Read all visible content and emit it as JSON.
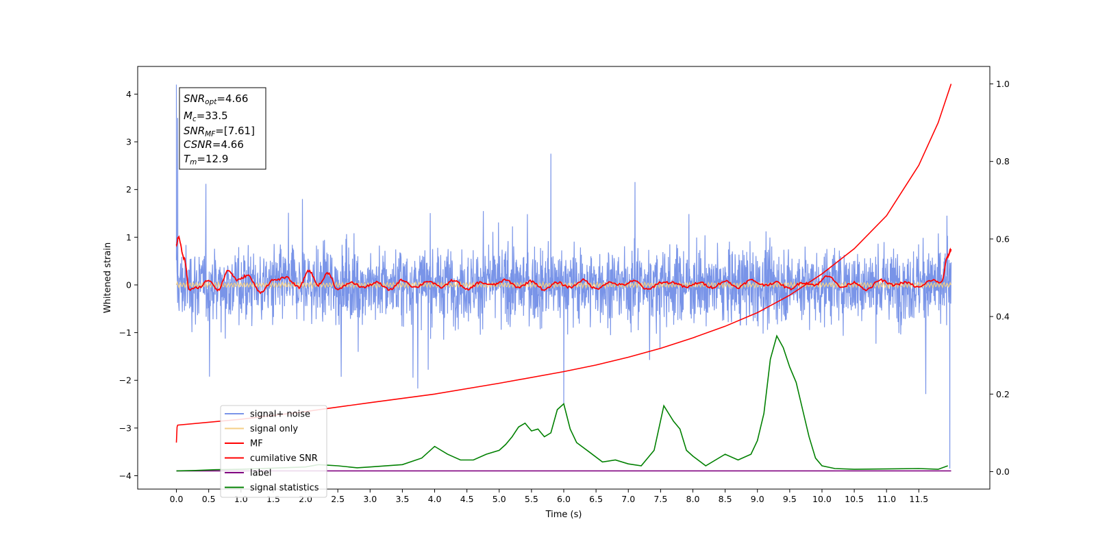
{
  "chart_data": {
    "type": "line",
    "xlabel": "Time (s)",
    "ylabel": "Whitened strain",
    "xlim": [
      -0.6,
      12.6
    ],
    "ylim": [
      -4.28,
      4.58
    ],
    "y2lim": [
      -0.045,
      1.045
    ],
    "x_ticks": [
      "0.0",
      "0.5",
      "1.0",
      "1.5",
      "2.0",
      "2.5",
      "3.0",
      "3.5",
      "4.0",
      "4.5",
      "5.0",
      "5.5",
      "6.0",
      "6.5",
      "7.0",
      "7.5",
      "8.0",
      "8.5",
      "9.0",
      "9.5",
      "10.0",
      "10.5",
      "11.0",
      "11.5"
    ],
    "y_ticks": [
      "4",
      "3",
      "2",
      "1",
      "0",
      "−1",
      "−2",
      "−3",
      "−4"
    ],
    "y2_ticks": [
      "1.0",
      "0.8",
      "0.6",
      "0.4",
      "0.2",
      "0.0"
    ],
    "legend_position": "lower-left",
    "info_box": {
      "snr_opt": {
        "base": "SNR",
        "sub": "opt",
        "value": "=4.66"
      },
      "mc": {
        "base": "M",
        "sub": "c",
        "value": "=33.5"
      },
      "snr_mf": {
        "base": "SNR",
        "sub": "MF",
        "value": "=[7.61]"
      },
      "csnr": {
        "base": "CSNR",
        "value": "=4.66"
      },
      "tm": {
        "base": "T",
        "sub": "m",
        "value": "=12.9"
      }
    },
    "series": [
      {
        "name": "signal+ noise",
        "color": "#7994e8",
        "axis": "left",
        "style": "noise",
        "t_start": 0.0,
        "t_end": 12.0,
        "amplitude": 0.55,
        "spike_times": [
          0.0,
          0.02,
          5.8,
          6.0,
          11.98
        ],
        "spike_values": [
          4.2,
          3.5,
          2.75,
          -2.5,
          -3.85
        ]
      },
      {
        "name": "signal only",
        "color": "#f5cf85",
        "axis": "left",
        "style": "band",
        "t_start": 0.0,
        "t_end": 12.0,
        "amplitude": 0.06
      },
      {
        "name": "MF",
        "color": "#ff0000",
        "axis": "left",
        "style": "mf",
        "x": [
          0.0,
          0.03,
          0.12,
          0.2,
          0.35,
          0.5,
          0.65,
          0.8,
          0.95,
          1.1,
          1.3,
          1.5,
          1.7,
          1.9,
          2.05,
          2.2,
          2.35,
          2.5,
          2.7,
          2.9,
          3.1,
          3.3,
          3.5,
          3.7,
          3.9,
          4.1,
          4.3,
          4.5,
          4.7,
          4.9,
          5.1,
          5.3,
          5.5,
          5.7,
          5.9,
          6.1,
          6.3,
          6.5,
          6.7,
          6.9,
          7.1,
          7.3,
          7.5,
          7.7,
          7.9,
          8.1,
          8.3,
          8.5,
          8.7,
          8.9,
          9.1,
          9.3,
          9.5,
          9.7,
          9.9,
          10.1,
          10.3,
          10.5,
          10.7,
          10.9,
          11.1,
          11.3,
          11.5,
          11.7,
          11.85,
          11.95,
          12.0
        ],
        "y": [
          0.85,
          1.0,
          0.55,
          -0.1,
          -0.05,
          0.1,
          -0.1,
          0.3,
          0.1,
          0.2,
          -0.15,
          0.1,
          0.15,
          -0.05,
          0.3,
          0.0,
          0.25,
          -0.1,
          0.05,
          -0.05,
          0.05,
          -0.1,
          0.1,
          -0.05,
          0.08,
          -0.05,
          0.1,
          -0.1,
          0.05,
          0.0,
          0.1,
          -0.05,
          0.08,
          -0.1,
          0.05,
          -0.05,
          0.1,
          -0.08,
          0.05,
          0.0,
          0.08,
          -0.1,
          0.05,
          0.05,
          -0.05,
          0.05,
          -0.05,
          0.08,
          -0.05,
          0.1,
          0.0,
          0.05,
          -0.08,
          0.05,
          0.0,
          0.2,
          -0.05,
          0.05,
          -0.1,
          0.1,
          0.0,
          0.05,
          -0.05,
          0.1,
          0.05,
          0.6,
          0.75
        ]
      },
      {
        "name": "cumilative SNR",
        "color": "#ff0000",
        "axis": "right",
        "style": "line",
        "x": [
          0.0,
          0.01,
          0.02,
          1,
          2,
          3,
          4,
          5,
          6,
          6.5,
          7,
          7.5,
          8,
          8.5,
          9,
          9.5,
          10,
          10.5,
          11,
          11.5,
          11.8,
          12.0
        ],
        "y": [
          0.075,
          0.115,
          0.12,
          0.135,
          0.155,
          0.178,
          0.2,
          0.228,
          0.258,
          0.275,
          0.295,
          0.318,
          0.345,
          0.375,
          0.41,
          0.455,
          0.51,
          0.575,
          0.66,
          0.79,
          0.9,
          1.0
        ]
      },
      {
        "name": "label",
        "color": "#800080",
        "axis": "right",
        "style": "line",
        "x": [
          0.0,
          12.0
        ],
        "y": [
          0.002,
          0.002
        ]
      },
      {
        "name": "signal statistics",
        "color": "#008000",
        "axis": "right",
        "style": "line",
        "x": [
          0.0,
          0.3,
          0.6,
          1.0,
          1.5,
          2.0,
          2.2,
          2.5,
          2.8,
          3.0,
          3.5,
          3.8,
          4.0,
          4.2,
          4.4,
          4.6,
          4.8,
          5.0,
          5.1,
          5.2,
          5.3,
          5.4,
          5.5,
          5.6,
          5.7,
          5.8,
          5.9,
          6.0,
          6.1,
          6.2,
          6.4,
          6.6,
          6.8,
          7.0,
          7.2,
          7.4,
          7.55,
          7.7,
          7.8,
          7.9,
          8.0,
          8.2,
          8.5,
          8.7,
          8.9,
          9.0,
          9.1,
          9.2,
          9.3,
          9.4,
          9.5,
          9.6,
          9.7,
          9.8,
          9.9,
          10.0,
          10.2,
          10.5,
          11.0,
          11.5,
          11.8,
          11.95
        ],
        "y": [
          0.002,
          0.003,
          0.005,
          0.006,
          0.009,
          0.012,
          0.018,
          0.015,
          0.01,
          0.012,
          0.018,
          0.035,
          0.065,
          0.045,
          0.03,
          0.03,
          0.045,
          0.055,
          0.07,
          0.09,
          0.115,
          0.125,
          0.105,
          0.11,
          0.09,
          0.1,
          0.16,
          0.175,
          0.11,
          0.075,
          0.05,
          0.025,
          0.03,
          0.02,
          0.015,
          0.055,
          0.17,
          0.13,
          0.11,
          0.055,
          0.04,
          0.015,
          0.045,
          0.03,
          0.045,
          0.08,
          0.15,
          0.29,
          0.35,
          0.32,
          0.27,
          0.23,
          0.16,
          0.09,
          0.035,
          0.015,
          0.008,
          0.006,
          0.007,
          0.008,
          0.006,
          0.015
        ]
      }
    ]
  }
}
